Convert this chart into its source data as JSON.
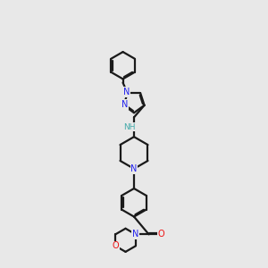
{
  "bg_color": "#e8e8e8",
  "bond_color": "#1a1a1a",
  "N_color": "#2222ee",
  "O_color": "#ee1111",
  "NH_color": "#44aaaa",
  "lw": 1.6,
  "fs": 7.0,
  "fig_w": 3.0,
  "fig_h": 3.0,
  "xlim": [
    0.5,
    5.5
  ],
  "ylim": [
    0.2,
    14.2
  ]
}
